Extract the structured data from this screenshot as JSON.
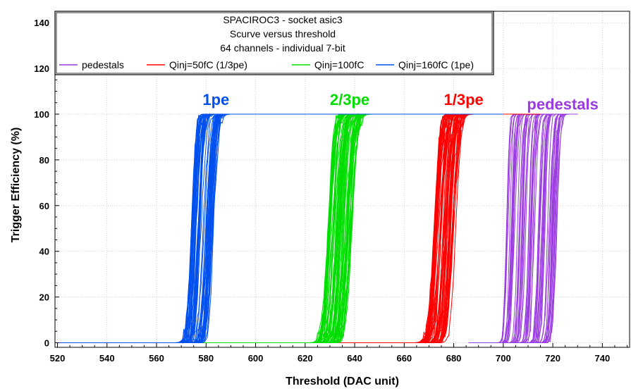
{
  "chart_data": {
    "type": "line",
    "title": [
      "SPACIROC3 - socket asic3",
      "Scurve versus threshold",
      "64 channels - individual 7-bit"
    ],
    "xlabel": "Threshold (DAC unit)",
    "ylabel": "Trigger Efficiency (%)",
    "xlim": [
      519,
      751
    ],
    "ylim": [
      -2,
      145
    ],
    "xticks": [
      520,
      540,
      560,
      580,
      600,
      620,
      640,
      660,
      680,
      700,
      720,
      740
    ],
    "yticks": [
      0,
      20,
      40,
      60,
      80,
      100,
      120,
      140
    ],
    "grid": true,
    "legend_position": "top-left",
    "channels": 64,
    "series": [
      {
        "name": "pedestals",
        "color": "#9a3ce0",
        "x_start": 686,
        "x_end": 730,
        "transition_min": 701,
        "transition_max": 722,
        "width": 3.5
      },
      {
        "name": "Qinj=50fC (1/3pe)",
        "color": "#ff0000",
        "x_start": 520,
        "x_end": 715,
        "transition_min": 672,
        "transition_max": 681,
        "width": 6
      },
      {
        "name": "Qinj=100fC",
        "color": "#00dd00",
        "x_start": 520,
        "x_end": 700,
        "transition_min": 629,
        "transition_max": 639,
        "width": 6
      },
      {
        "name": "Qinj=160fC (1pe)",
        "color": "#0050ee",
        "x_start": 520,
        "x_end": 700,
        "transition_min": 574,
        "transition_max": 583,
        "width": 5
      }
    ],
    "annotations": [
      {
        "text": "1pe",
        "x": 584,
        "y": 104,
        "color": "#0050ee"
      },
      {
        "text": "2/3pe",
        "x": 638,
        "y": 104,
        "color": "#00dd00"
      },
      {
        "text": "1/3pe",
        "x": 684,
        "y": 104,
        "color": "#ff0000"
      },
      {
        "text": "pedestals",
        "x": 724,
        "y": 102,
        "color": "#9a3ce0"
      }
    ]
  }
}
